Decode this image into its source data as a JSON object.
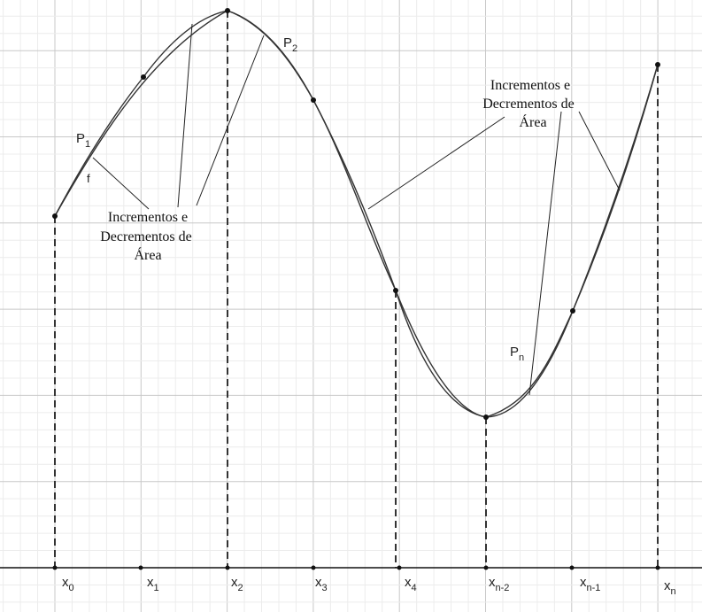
{
  "x_axis_labels": [
    {
      "base": "x",
      "sub": "0"
    },
    {
      "base": "x",
      "sub": "1"
    },
    {
      "base": "x",
      "sub": "2"
    },
    {
      "base": "x",
      "sub": "3"
    },
    {
      "base": "x",
      "sub": "4"
    },
    {
      "base": "x",
      "sub": "n-2"
    },
    {
      "base": "x",
      "sub": "n-1"
    },
    {
      "base": "x",
      "sub": "n"
    }
  ],
  "curve_labels": {
    "f": "f",
    "p1": {
      "base": "P",
      "sub": "1"
    },
    "p2": {
      "base": "P",
      "sub": "2"
    },
    "pn": {
      "base": "P",
      "sub": "n"
    }
  },
  "annotations": {
    "left": [
      "Incrementos e",
      "Decrementos de",
      "Área"
    ],
    "right": [
      "Incrementos e",
      "Decrementos de",
      "Área"
    ]
  },
  "colors": {
    "curve": "#333333",
    "grid_major": "#c8c8c8",
    "grid_minor": "#ececec",
    "axis": "#111111"
  }
}
